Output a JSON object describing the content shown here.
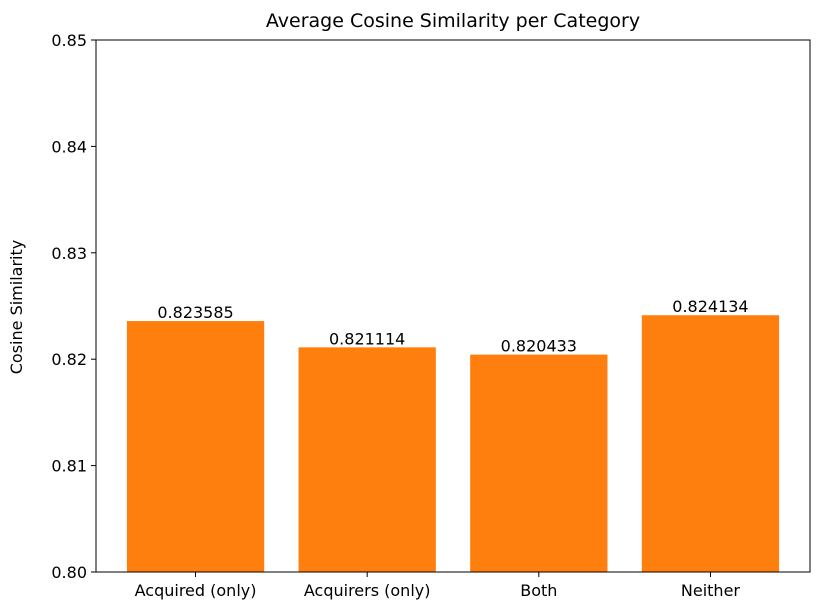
{
  "chart_data": {
    "type": "bar",
    "title": "Average Cosine Similarity per Category",
    "xlabel": "",
    "ylabel": "Cosine Similarity",
    "categories": [
      "Acquired (only)",
      "Acquirers (only)",
      "Both",
      "Neither"
    ],
    "values": [
      0.823585,
      0.821114,
      0.820433,
      0.824134
    ],
    "value_labels": [
      "0.823585",
      "0.821114",
      "0.820433",
      "0.824134"
    ],
    "ylim": [
      0.8,
      0.85
    ],
    "yticks": [
      0.8,
      0.81,
      0.82,
      0.83,
      0.84,
      0.85
    ],
    "ytick_labels": [
      "0.80",
      "0.81",
      "0.82",
      "0.83",
      "0.84",
      "0.85"
    ],
    "bar_color": "#ff7f0e",
    "grid": false,
    "legend": "none"
  }
}
